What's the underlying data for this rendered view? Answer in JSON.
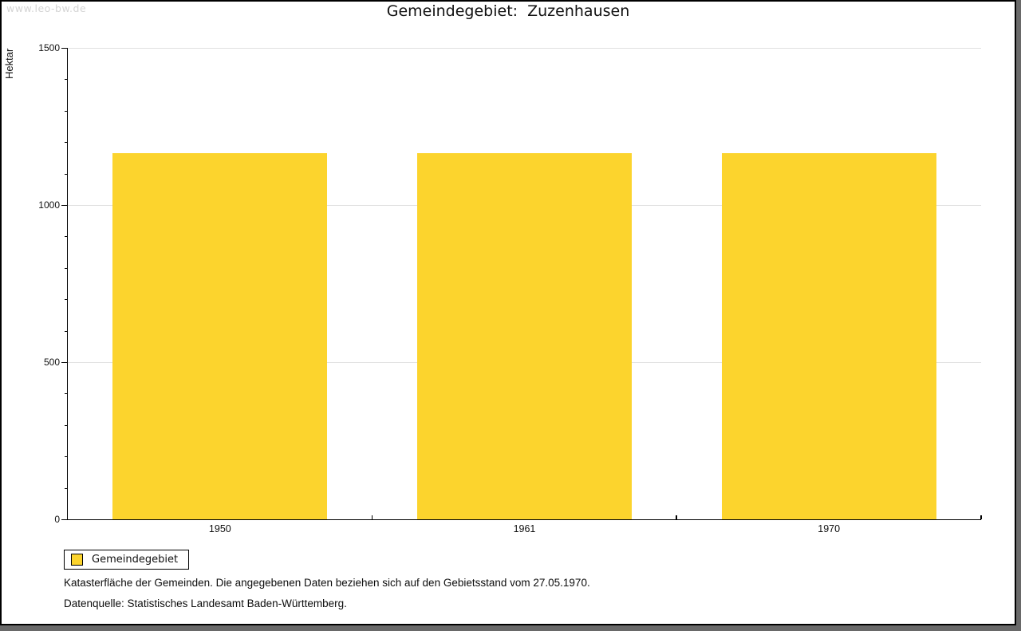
{
  "watermark": "www.leo-bw.de",
  "title": "Gemeindegebiet:  Zuzenhausen",
  "chart_data": {
    "type": "bar",
    "title": "Gemeindegebiet: Zuzenhausen",
    "categories": [
      "1950",
      "1961",
      "1970"
    ],
    "series": [
      {
        "name": "Gemeindegebiet",
        "values": [
          1166,
          1166,
          1166
        ],
        "color": "#fcd42d"
      }
    ],
    "xlabel": "",
    "ylabel": "Hektar",
    "ylim": [
      0,
      1500
    ],
    "yticks_major": [
      0,
      500,
      1000,
      1500
    ],
    "ytick_minor_step": 100,
    "grid": "horizontal-major-only",
    "legend_position": "bottom-left"
  },
  "legend": {
    "label": "Gemeindegebiet",
    "swatch_color": "#fcd42d"
  },
  "footer": {
    "line1": "Katasterfläche der Gemeinden. Die angegebenen Daten beziehen sich auf den Gebietsstand vom 27.05.1970.",
    "line2": "Datenquelle: Statistisches Landesamt Baden-Württemberg."
  },
  "colors": {
    "bar": "#fcd42d",
    "gridline": "#e0e0e0",
    "axis": "#000000",
    "frame_shadow": "#696969",
    "watermark_text": "#d4d4d4"
  }
}
